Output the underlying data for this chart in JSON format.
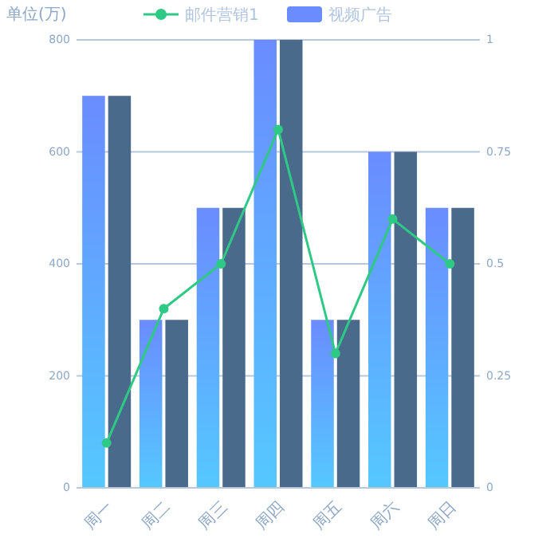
{
  "chart_data": {
    "type": "bar",
    "ylabel": "单位(万)",
    "categories": [
      "周一",
      "周二",
      "周三",
      "周四",
      "周五",
      "周六",
      "周日"
    ],
    "series": [
      {
        "name": "邮件营销1",
        "type": "line",
        "axis": "y2",
        "color": "#2ec985",
        "values": [
          0.1,
          0.4,
          0.5,
          0.8,
          0.3,
          0.6,
          0.5
        ]
      },
      {
        "name": "视频广告",
        "color": "#6a8cff",
        "values": [
          700,
          300,
          500,
          800,
          300,
          600,
          500
        ]
      },
      {
        "color": "#4a6a8c",
        "values": [
          700,
          300,
          500,
          800,
          300,
          600,
          500
        ]
      }
    ],
    "ylim": [
      0,
      800
    ],
    "yticks": [
      0,
      200,
      400,
      600,
      800
    ],
    "y2lim": [
      0,
      1
    ],
    "y2ticks": [
      0,
      0.25,
      0.5,
      0.75,
      1
    ],
    "grid": "y",
    "legend": "top",
    "marker": "circle",
    "line_style": "solid"
  }
}
